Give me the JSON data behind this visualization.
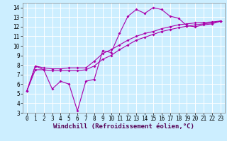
{
  "background_color": "#cceeff",
  "grid_color": "#ffffff",
  "line_color": "#aa00aa",
  "marker": "D",
  "markersize": 2.0,
  "linewidth": 0.8,
  "xlabel": "Windchill (Refroidissement éolien,°C)",
  "xlabel_fontsize": 6.5,
  "tick_fontsize": 5.5,
  "xlim": [
    -0.5,
    23.5
  ],
  "ylim": [
    3,
    14.5
  ],
  "xticks": [
    0,
    1,
    2,
    3,
    4,
    5,
    6,
    7,
    8,
    9,
    10,
    11,
    12,
    13,
    14,
    15,
    16,
    17,
    18,
    19,
    20,
    21,
    22,
    23
  ],
  "yticks": [
    3,
    4,
    5,
    6,
    7,
    8,
    9,
    10,
    11,
    12,
    13,
    14
  ],
  "series1_x": [
    0,
    1,
    2,
    3,
    4,
    5,
    6,
    7,
    8,
    9,
    10,
    11,
    12,
    13,
    14,
    15,
    16,
    17,
    18,
    19,
    20,
    21,
    22,
    23
  ],
  "series1_y": [
    5.3,
    7.9,
    7.5,
    5.5,
    6.3,
    6.0,
    3.2,
    6.3,
    6.5,
    9.5,
    9.3,
    11.3,
    13.1,
    13.8,
    13.4,
    14.0,
    13.8,
    13.1,
    12.9,
    12.1,
    12.0,
    12.2,
    12.3,
    12.6
  ],
  "series2_x": [
    0,
    1,
    2,
    3,
    4,
    5,
    6,
    7,
    8,
    9,
    10,
    11,
    12,
    13,
    14,
    15,
    16,
    17,
    18,
    19,
    20,
    21,
    22,
    23
  ],
  "series2_y": [
    5.3,
    7.9,
    7.7,
    7.6,
    7.6,
    7.7,
    7.7,
    7.7,
    8.4,
    9.2,
    9.6,
    10.1,
    10.6,
    11.0,
    11.3,
    11.5,
    11.8,
    12.0,
    12.2,
    12.3,
    12.4,
    12.45,
    12.5,
    12.6
  ],
  "series3_x": [
    0,
    1,
    2,
    3,
    4,
    5,
    6,
    7,
    8,
    9,
    10,
    11,
    12,
    13,
    14,
    15,
    16,
    17,
    18,
    19,
    20,
    21,
    22,
    23
  ],
  "series3_y": [
    5.3,
    7.5,
    7.5,
    7.4,
    7.4,
    7.4,
    7.4,
    7.5,
    7.9,
    8.6,
    9.0,
    9.6,
    10.1,
    10.6,
    10.9,
    11.2,
    11.5,
    11.7,
    11.9,
    12.05,
    12.2,
    12.3,
    12.4,
    12.55
  ]
}
